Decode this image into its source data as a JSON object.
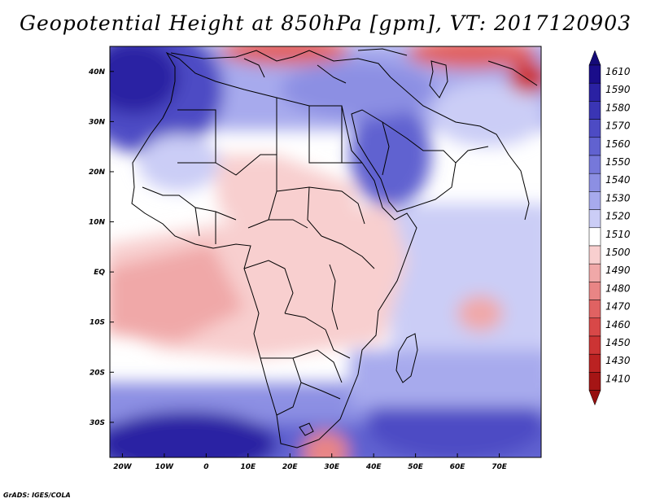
{
  "title": "Geopotential Height at 850hPa [gpm], VT: 2017120903",
  "footer": "GrADS: IGES/COLA",
  "map": {
    "lon_range": [
      -23,
      80
    ],
    "lat_range": [
      -37,
      45
    ],
    "x_ticks": [
      {
        "lon": -20,
        "label": "20W"
      },
      {
        "lon": -10,
        "label": "10W"
      },
      {
        "lon": 0,
        "label": "0"
      },
      {
        "lon": 10,
        "label": "10E"
      },
      {
        "lon": 20,
        "label": "20E"
      },
      {
        "lon": 30,
        "label": "30E"
      },
      {
        "lon": 40,
        "label": "40E"
      },
      {
        "lon": 50,
        "label": "50E"
      },
      {
        "lon": 60,
        "label": "60E"
      },
      {
        "lon": 70,
        "label": "70E"
      }
    ],
    "y_ticks": [
      {
        "lat": 40,
        "label": "40N"
      },
      {
        "lat": 30,
        "label": "30N"
      },
      {
        "lat": 20,
        "label": "20N"
      },
      {
        "lat": 10,
        "label": "10N"
      },
      {
        "lat": 0,
        "label": "EQ"
      },
      {
        "lat": -10,
        "label": "10S"
      },
      {
        "lat": -20,
        "label": "20S"
      },
      {
        "lat": -30,
        "label": "30S"
      }
    ]
  },
  "colorbar": {
    "levels": [
      {
        "label": "1610",
        "color": "#1a0d8a"
      },
      {
        "label": "1590",
        "color": "#2a21a3"
      },
      {
        "label": "1580",
        "color": "#3a35b4"
      },
      {
        "label": "1570",
        "color": "#4d4bc4"
      },
      {
        "label": "1560",
        "color": "#6162d0"
      },
      {
        "label": "1550",
        "color": "#7678da"
      },
      {
        "label": "1540",
        "color": "#8c8fe3"
      },
      {
        "label": "1530",
        "color": "#a7aaed"
      },
      {
        "label": "1520",
        "color": "#cbcdf6"
      },
      {
        "label": "1510",
        "color": "#ffffff"
      },
      {
        "label": "1500",
        "color": "#f8cfcf"
      },
      {
        "label": "1490",
        "color": "#f0a8a8"
      },
      {
        "label": "1480",
        "color": "#e98585"
      },
      {
        "label": "1470",
        "color": "#e06262"
      },
      {
        "label": "1460",
        "color": "#d84848"
      },
      {
        "label": "1450",
        "color": "#cc3434"
      },
      {
        "label": "1430",
        "color": "#bb2222"
      },
      {
        "label": "1410",
        "color": "#a51515"
      }
    ],
    "top_color": "#140a78",
    "bottom_color": "#961010"
  }
}
